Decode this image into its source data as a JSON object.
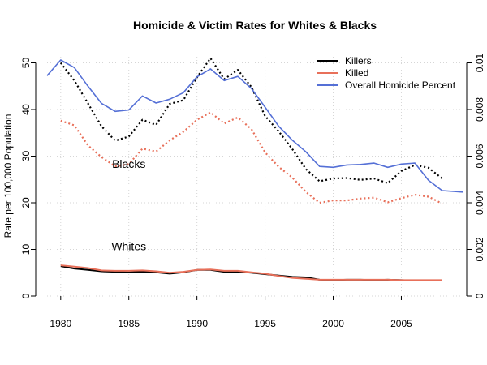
{
  "chart_data": {
    "type": "line",
    "title": "Homicide & Victim Rates for Whites & Blacks",
    "xlabel": "",
    "ylabel": "Rate per 100,000 Population",
    "xlim": [
      1979,
      2009.5
    ],
    "ylim": [
      0,
      52
    ],
    "y2lim": [
      0,
      0.0104
    ],
    "x_ticks": [
      1980,
      1985,
      1990,
      1995,
      2000,
      2005
    ],
    "y_ticks": [
      0,
      10,
      20,
      30,
      40,
      50
    ],
    "y2_ticks": [
      0,
      0.002,
      0.004,
      0.006,
      0.008,
      0.01
    ],
    "y2_tick_labels": [
      "0",
      "0.002",
      "0.004",
      "0.006",
      "0.008",
      "0.01"
    ],
    "grid": true,
    "legend": {
      "position": "top-right",
      "entries": [
        {
          "label": "Killers",
          "color": "#000000"
        },
        {
          "label": "Killed",
          "color": "#e8705a"
        },
        {
          "label": "Overall Homicide Percent",
          "color": "#5570d6"
        }
      ]
    },
    "annotations": [
      {
        "text": "Blacks",
        "x": 1985,
        "y": 27.5
      },
      {
        "text": "Whites",
        "x": 1985,
        "y": 9.8
      }
    ],
    "x": [
      1980,
      1981,
      1982,
      1983,
      1984,
      1985,
      1986,
      1987,
      1988,
      1989,
      1990,
      1991,
      1992,
      1993,
      1994,
      1995,
      1996,
      1997,
      1998,
      1999,
      2000,
      2001,
      2002,
      2003,
      2004,
      2005,
      2006,
      2007,
      2008
    ],
    "series": [
      {
        "name": "Black Killers",
        "color": "#000000",
        "style": "dotted",
        "axis": "left",
        "values": [
          50.0,
          46.2,
          41.3,
          36.4,
          33.3,
          34.2,
          37.8,
          36.7,
          41.2,
          42.0,
          46.9,
          51.0,
          46.5,
          48.5,
          44.8,
          38.6,
          35.3,
          31.5,
          27.2,
          24.6,
          25.2,
          25.3,
          24.9,
          25.2,
          24.2,
          26.8,
          28.1,
          27.5,
          25.2
        ]
      },
      {
        "name": "Black Killed",
        "color": "#e8705a",
        "style": "dotted",
        "axis": "left",
        "values": [
          37.6,
          36.6,
          32.3,
          29.8,
          27.8,
          28.3,
          31.6,
          31.0,
          33.4,
          35.2,
          37.8,
          39.4,
          37.0,
          38.3,
          35.8,
          30.8,
          27.7,
          25.4,
          22.3,
          20.0,
          20.5,
          20.5,
          20.9,
          21.1,
          20.1,
          21.0,
          21.7,
          21.3,
          19.8
        ]
      },
      {
        "name": "White Killers",
        "color": "#000000",
        "style": "solid",
        "axis": "left",
        "values": [
          6.4,
          5.9,
          5.6,
          5.3,
          5.2,
          5.1,
          5.2,
          5.1,
          4.8,
          5.1,
          5.6,
          5.6,
          5.2,
          5.2,
          5.0,
          4.7,
          4.4,
          4.1,
          4.0,
          3.5,
          3.4,
          3.5,
          3.5,
          3.4,
          3.5,
          3.4,
          3.3,
          3.3,
          3.3
        ]
      },
      {
        "name": "White Killed",
        "color": "#e8705a",
        "style": "solid",
        "axis": "left",
        "values": [
          6.6,
          6.3,
          6.0,
          5.5,
          5.4,
          5.4,
          5.5,
          5.3,
          5.0,
          5.2,
          5.6,
          5.7,
          5.4,
          5.4,
          5.1,
          4.8,
          4.3,
          3.9,
          3.7,
          3.5,
          3.5,
          3.5,
          3.5,
          3.5,
          3.5,
          3.4,
          3.4,
          3.4,
          3.4
        ]
      },
      {
        "name": "Overall Homicide Percent",
        "color": "#5570d6",
        "style": "solid",
        "axis": "right",
        "x": [
          1979,
          1980,
          1981,
          1982,
          1983,
          1984,
          1985,
          1986,
          1987,
          1988,
          1989,
          1990,
          1991,
          1992,
          1993,
          1994,
          1995,
          1996,
          1997,
          1998,
          1999,
          2000,
          2001,
          2002,
          2003,
          2004,
          2005,
          2006,
          2007,
          2008,
          2009.5
        ],
        "values": [
          0.00945,
          0.01012,
          0.0098,
          0.009,
          0.00826,
          0.00792,
          0.00798,
          0.00858,
          0.00828,
          0.00844,
          0.00872,
          0.0094,
          0.00974,
          0.00924,
          0.00942,
          0.0089,
          0.0081,
          0.00728,
          0.00668,
          0.00618,
          0.00556,
          0.00552,
          0.00562,
          0.00564,
          0.0057,
          0.00552,
          0.00566,
          0.0057,
          0.00496,
          0.00452,
          0.00446
        ]
      }
    ]
  }
}
